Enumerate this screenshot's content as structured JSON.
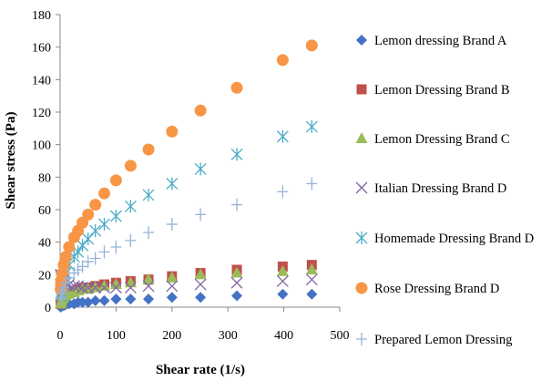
{
  "chart_data": {
    "type": "scatter",
    "xlabel": "Shear rate (1/s)",
    "ylabel": "Shear stress  (Pa)",
    "xlim": [
      0,
      500
    ],
    "ylim": [
      0,
      180
    ],
    "xticks": [
      0,
      100,
      200,
      300,
      400,
      500
    ],
    "yticks": [
      0,
      20,
      40,
      60,
      80,
      100,
      120,
      140,
      160,
      180
    ],
    "grid": false,
    "legend_position": "right",
    "x": [
      1,
      1.6,
      2.5,
      4,
      6.3,
      10,
      16,
      25,
      32,
      40,
      50,
      63,
      79,
      100,
      126,
      158,
      200,
      251,
      316,
      398,
      450
    ],
    "series": [
      {
        "name": "Lemon dressing  Brand A",
        "marker": "diamond",
        "color": "#4472C4",
        "values": [
          0,
          0.5,
          0.5,
          1,
          1,
          1.5,
          2,
          2,
          3,
          3,
          3,
          4,
          4,
          5,
          5,
          5,
          6,
          6,
          7,
          8,
          8
        ]
      },
      {
        "name": "Lemon Dressing  Brand B",
        "marker": "square",
        "color": "#C0504D",
        "values": [
          2,
          3,
          4,
          5,
          7,
          8,
          9,
          10,
          11,
          12,
          12,
          13,
          14,
          15,
          16,
          17,
          19,
          21,
          23,
          25,
          26
        ]
      },
      {
        "name": "Lemon Dressing  Brand C",
        "marker": "triangle",
        "color": "#9BBB59",
        "values": [
          2,
          3,
          4,
          5,
          6,
          7,
          8,
          9,
          10,
          11,
          11,
          12,
          13,
          14,
          15,
          17,
          18,
          20,
          21,
          22,
          23
        ]
      },
      {
        "name": "Italian Dressing  Brand D",
        "marker": "x",
        "color": "#8064A2",
        "values": [
          20,
          19,
          18,
          17,
          16,
          15,
          14,
          13,
          13,
          12,
          12,
          12,
          12,
          12,
          12,
          13,
          13,
          14,
          15,
          16,
          17
        ]
      },
      {
        "name": "Homemade Dressing  Brand D",
        "marker": "asterisk",
        "color": "#4BACC6",
        "values": [
          7,
          9,
          11,
          14,
          17,
          21,
          26,
          31,
          34,
          38,
          42,
          47,
          51,
          56,
          62,
          69,
          76,
          85,
          94,
          105,
          111
        ]
      },
      {
        "name": "Rose Dressing  Brand D",
        "marker": "circle",
        "color": "#F79646",
        "values": [
          11,
          14,
          17,
          21,
          26,
          31,
          37,
          43,
          47,
          52,
          57,
          63,
          70,
          78,
          87,
          97,
          108,
          121,
          135,
          152,
          161
        ]
      },
      {
        "name": "Prepared Lemon Dressing",
        "marker": "plus",
        "color": "#95B3D7",
        "values": [
          5,
          6,
          8,
          10,
          12,
          15,
          18,
          21,
          23,
          25,
          28,
          30,
          34,
          37,
          41,
          46,
          51,
          57,
          63,
          71,
          76
        ]
      }
    ]
  }
}
